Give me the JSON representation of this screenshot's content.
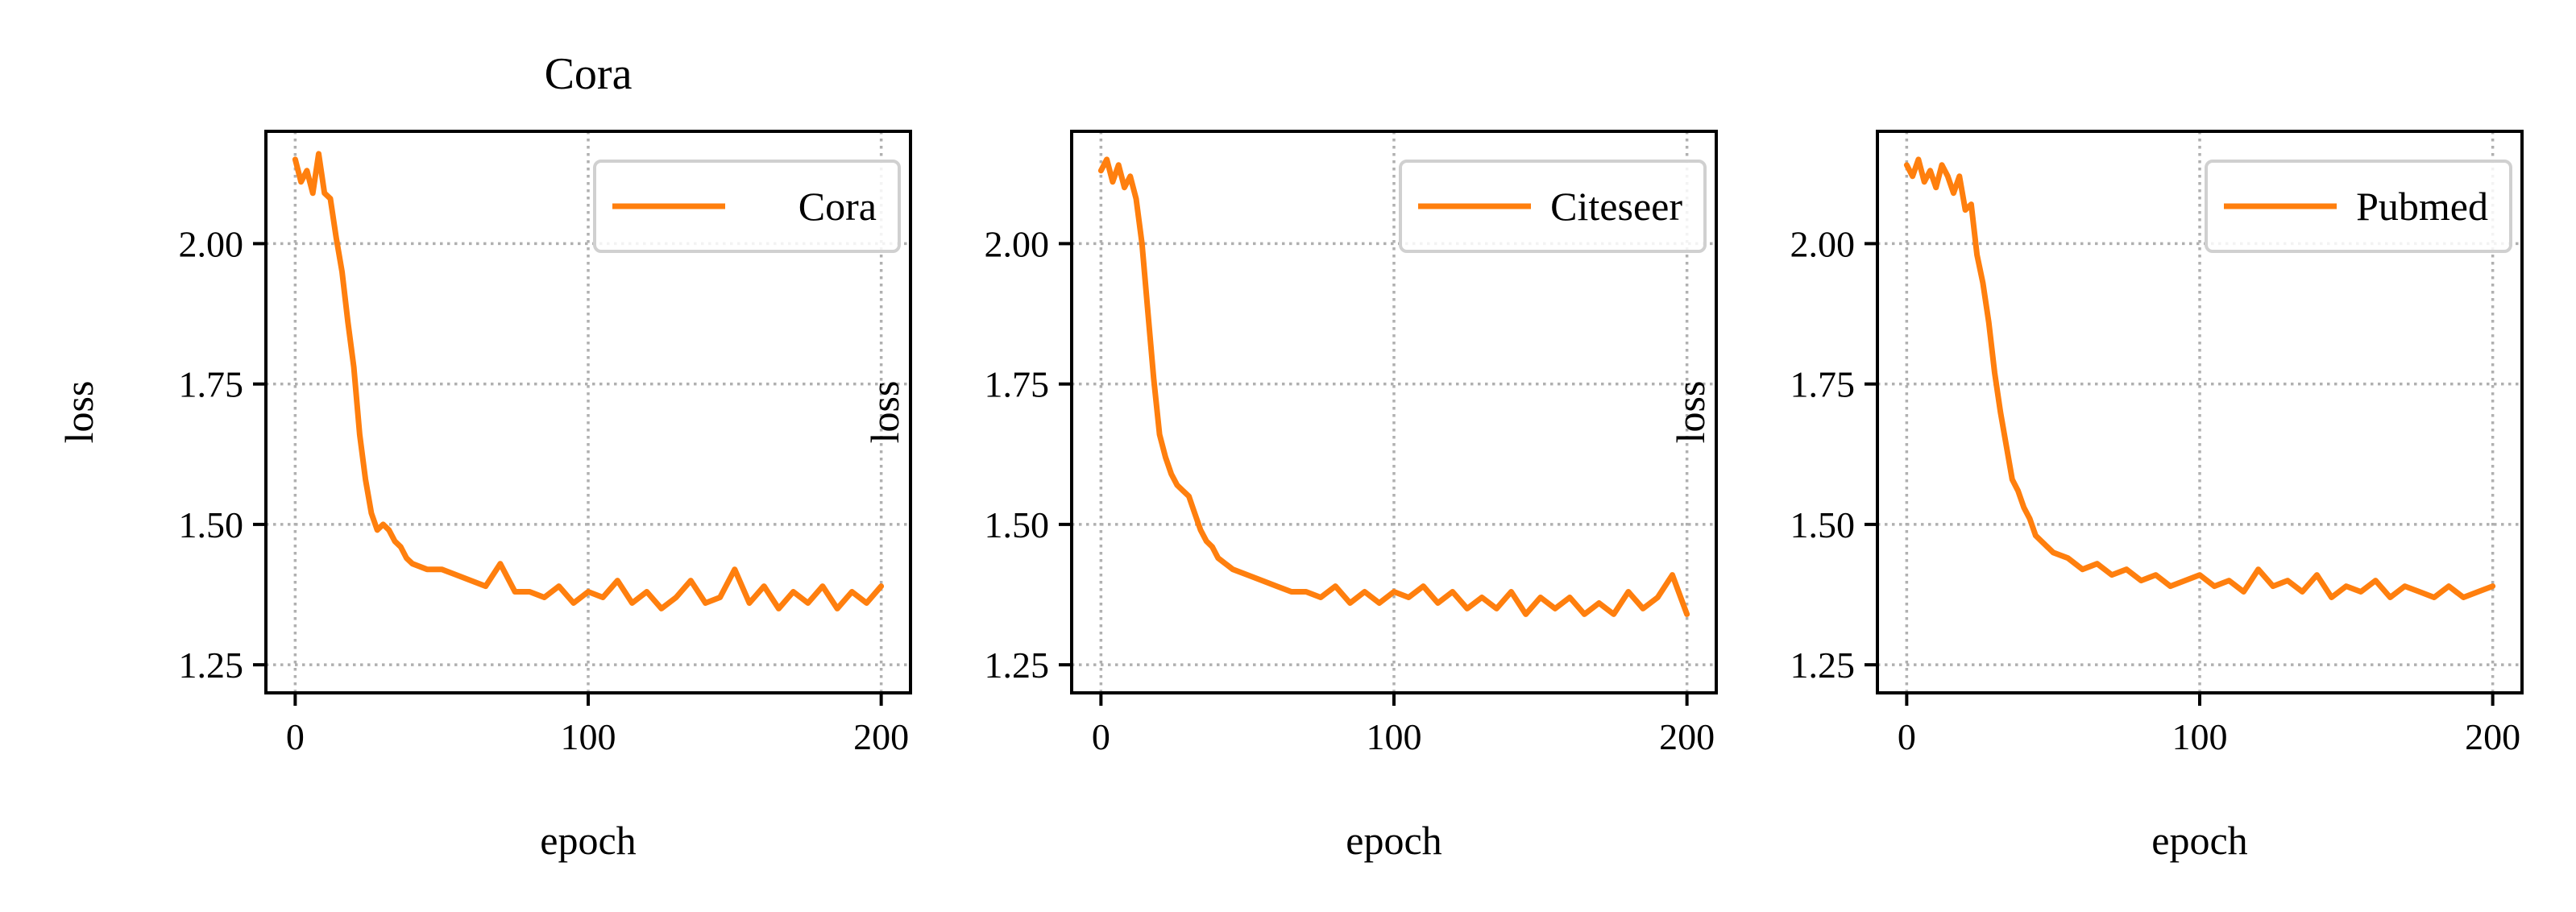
{
  "chart_data": [
    {
      "type": "line",
      "title": "Cora",
      "xlabel": "epoch",
      "ylabel": "loss",
      "xlim": [
        -10,
        210
      ],
      "ylim": [
        1.2,
        2.2
      ],
      "xticks": [
        0,
        100,
        200
      ],
      "xtick_labels": [
        "0",
        "100",
        "200"
      ],
      "yticks": [
        1.25,
        1.5,
        1.75,
        2.0
      ],
      "ytick_labels": [
        "1.25",
        "1.50",
        "1.75",
        "2.00"
      ],
      "grid": true,
      "legend_position": "top-right",
      "series": [
        {
          "name": "Cora",
          "color": "#ff7f0e",
          "x": [
            0,
            2,
            4,
            6,
            8,
            10,
            12,
            14,
            16,
            18,
            20,
            22,
            24,
            26,
            28,
            30,
            32,
            34,
            36,
            38,
            40,
            45,
            50,
            55,
            60,
            65,
            70,
            75,
            80,
            85,
            90,
            95,
            100,
            105,
            110,
            115,
            120,
            125,
            130,
            135,
            140,
            145,
            150,
            155,
            160,
            165,
            170,
            175,
            180,
            185,
            190,
            195,
            200
          ],
          "y": [
            2.15,
            2.11,
            2.13,
            2.09,
            2.16,
            2.09,
            2.08,
            2.01,
            1.95,
            1.86,
            1.78,
            1.66,
            1.58,
            1.52,
            1.49,
            1.5,
            1.49,
            1.47,
            1.46,
            1.44,
            1.43,
            1.42,
            1.42,
            1.41,
            1.4,
            1.39,
            1.43,
            1.38,
            1.38,
            1.37,
            1.39,
            1.36,
            1.38,
            1.37,
            1.4,
            1.36,
            1.38,
            1.35,
            1.37,
            1.4,
            1.36,
            1.37,
            1.42,
            1.36,
            1.39,
            1.35,
            1.38,
            1.36,
            1.39,
            1.35,
            1.38,
            1.36,
            1.39
          ]
        }
      ]
    },
    {
      "type": "line",
      "title": "",
      "xlabel": "epoch",
      "ylabel": "loss",
      "xlim": [
        -10,
        210
      ],
      "ylim": [
        1.2,
        2.2
      ],
      "xticks": [
        0,
        100,
        200
      ],
      "xtick_labels": [
        "0",
        "100",
        "200"
      ],
      "yticks": [
        1.25,
        1.5,
        1.75,
        2.0
      ],
      "ytick_labels": [
        "1.25",
        "1.50",
        "1.75",
        "2.00"
      ],
      "grid": true,
      "legend_position": "top-right",
      "series": [
        {
          "name": "Citeseer",
          "color": "#ff7f0e",
          "x": [
            0,
            2,
            4,
            6,
            8,
            10,
            12,
            14,
            16,
            18,
            20,
            22,
            24,
            26,
            28,
            30,
            32,
            34,
            36,
            38,
            40,
            45,
            50,
            55,
            60,
            65,
            70,
            75,
            80,
            85,
            90,
            95,
            100,
            105,
            110,
            115,
            120,
            125,
            130,
            135,
            140,
            145,
            150,
            155,
            160,
            165,
            170,
            175,
            180,
            185,
            190,
            195,
            200
          ],
          "y": [
            2.13,
            2.15,
            2.11,
            2.14,
            2.1,
            2.12,
            2.08,
            2.0,
            1.88,
            1.76,
            1.66,
            1.62,
            1.59,
            1.57,
            1.56,
            1.55,
            1.52,
            1.49,
            1.47,
            1.46,
            1.44,
            1.42,
            1.41,
            1.4,
            1.39,
            1.38,
            1.38,
            1.37,
            1.39,
            1.36,
            1.38,
            1.36,
            1.38,
            1.37,
            1.39,
            1.36,
            1.38,
            1.35,
            1.37,
            1.35,
            1.38,
            1.34,
            1.37,
            1.35,
            1.37,
            1.34,
            1.36,
            1.34,
            1.38,
            1.35,
            1.37,
            1.41,
            1.34
          ]
        }
      ]
    },
    {
      "type": "line",
      "title": "",
      "xlabel": "epoch",
      "ylabel": "loss",
      "xlim": [
        -10,
        210
      ],
      "ylim": [
        1.2,
        2.2
      ],
      "xticks": [
        0,
        100,
        200
      ],
      "xtick_labels": [
        "0",
        "100",
        "200"
      ],
      "yticks": [
        1.25,
        1.5,
        1.75,
        2.0
      ],
      "ytick_labels": [
        "1.25",
        "1.50",
        "1.75",
        "2.00"
      ],
      "grid": true,
      "legend_position": "top-right",
      "series": [
        {
          "name": "Pubmed",
          "color": "#ff7f0e",
          "x": [
            0,
            2,
            4,
            6,
            8,
            10,
            12,
            14,
            16,
            18,
            20,
            22,
            24,
            26,
            28,
            30,
            32,
            34,
            36,
            38,
            40,
            42,
            44,
            46,
            48,
            50,
            55,
            60,
            65,
            70,
            75,
            80,
            85,
            90,
            95,
            100,
            105,
            110,
            115,
            120,
            125,
            130,
            135,
            140,
            145,
            150,
            155,
            160,
            165,
            170,
            175,
            180,
            185,
            190,
            195,
            200
          ],
          "y": [
            2.14,
            2.12,
            2.15,
            2.11,
            2.13,
            2.1,
            2.14,
            2.12,
            2.09,
            2.12,
            2.06,
            2.07,
            1.98,
            1.93,
            1.86,
            1.77,
            1.7,
            1.64,
            1.58,
            1.56,
            1.53,
            1.51,
            1.48,
            1.47,
            1.46,
            1.45,
            1.44,
            1.42,
            1.43,
            1.41,
            1.42,
            1.4,
            1.41,
            1.39,
            1.4,
            1.41,
            1.39,
            1.4,
            1.38,
            1.42,
            1.39,
            1.4,
            1.38,
            1.41,
            1.37,
            1.39,
            1.38,
            1.4,
            1.37,
            1.39,
            1.38,
            1.37,
            1.39,
            1.37,
            1.38,
            1.39
          ]
        }
      ]
    }
  ]
}
